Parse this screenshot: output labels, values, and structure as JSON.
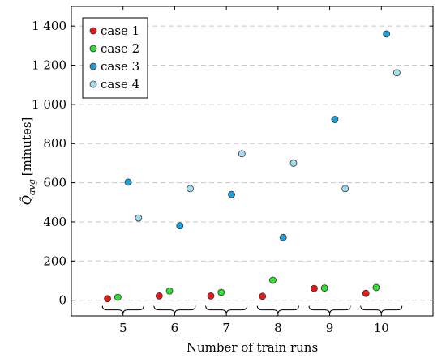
{
  "chart_data": {
    "type": "scatter",
    "xlabel": "Number of train runs",
    "ylabel_main": "Q̃",
    "ylabel_sub": "avg",
    "ylabel_unit": "[minutes]",
    "categories": [
      "5",
      "6",
      "7",
      "8",
      "9",
      "10"
    ],
    "ylim": [
      -80,
      1500
    ],
    "yticks": [
      0,
      200,
      400,
      600,
      800,
      1000,
      1200,
      1400
    ],
    "ytick_labels": [
      "0",
      "200",
      "400",
      "600",
      "800",
      "1 000",
      "1 200",
      "1 400"
    ],
    "grid": "horizontal dashed",
    "legend_position": "top-left",
    "series": [
      {
        "name": "case 1",
        "color": "#e8181a",
        "values": [
          8,
          22,
          22,
          20,
          60,
          35
        ]
      },
      {
        "name": "case 2",
        "color": "#2fe02f",
        "values": [
          15,
          47,
          40,
          102,
          62,
          65
        ]
      },
      {
        "name": "case 3",
        "color": "#1aa0dc",
        "values": [
          603,
          380,
          540,
          320,
          923,
          1360
        ]
      },
      {
        "name": "case 4",
        "color": "#a6dcf2",
        "values": [
          420,
          570,
          748,
          700,
          570,
          1162
        ]
      }
    ]
  }
}
